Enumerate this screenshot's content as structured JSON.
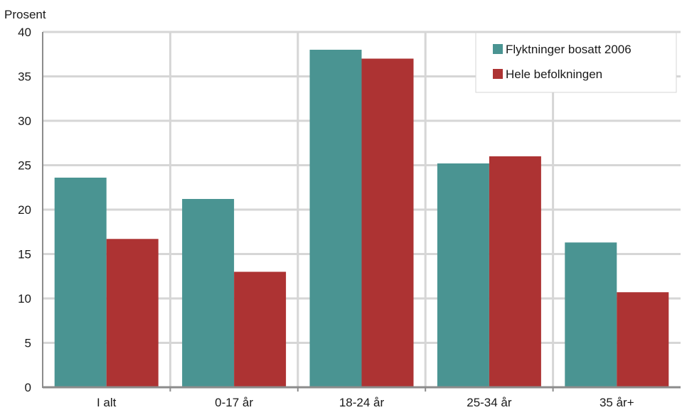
{
  "chart_data": {
    "type": "bar",
    "ylabel": "Prosent",
    "xlabel": "",
    "ylim": [
      0,
      40
    ],
    "yticks": [
      0,
      5,
      10,
      15,
      20,
      25,
      30,
      35,
      40
    ],
    "grid": true,
    "legend_position": "top-right",
    "categories": [
      "I alt",
      "0-17 år",
      "18-24 år",
      "25-34 år",
      "35 år+"
    ],
    "series": [
      {
        "name": "Flyktninger bosatt 2006",
        "color": "#4a9492",
        "values": [
          23.6,
          21.2,
          38.0,
          25.2,
          16.3
        ]
      },
      {
        "name": "Hele befolkningen",
        "color": "#ad3333",
        "values": [
          16.7,
          13.0,
          37.0,
          26.0,
          10.7
        ]
      }
    ]
  }
}
